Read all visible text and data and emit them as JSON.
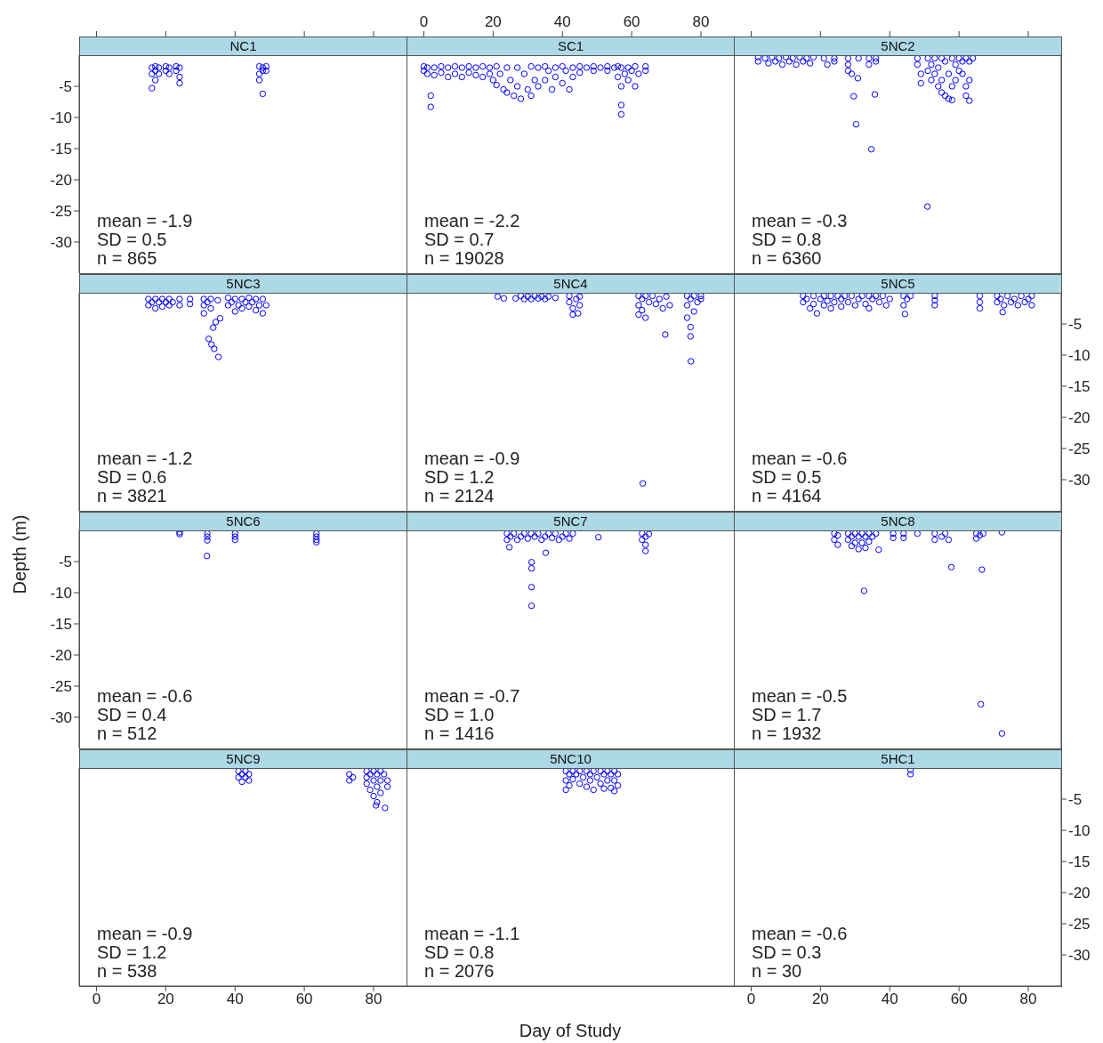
{
  "chart_data": [
    {
      "type": "scatter",
      "title": "NC1",
      "marker": "circle",
      "color": "#0000ff",
      "tick_labels": "y",
      "xlim": [
        -5,
        89.5
      ],
      "xticks": [
        0,
        20,
        40,
        60,
        80
      ],
      "ylim": [
        -35,
        0
      ],
      "yticks": [
        -5,
        -10,
        -15,
        -20,
        -25,
        -30
      ],
      "annotations": [
        "mean = -1.9",
        "SD = 0.5",
        "n = 865"
      ],
      "x": [
        16,
        16,
        16,
        17,
        17,
        17,
        18,
        18,
        20,
        20,
        21,
        21,
        23,
        23,
        24,
        24,
        24,
        47,
        47,
        47,
        48,
        48,
        48,
        49,
        49
      ],
      "values": [
        -2,
        -3,
        -5.3,
        -1.8,
        -2.5,
        -4,
        -2,
        -3,
        -1.8,
        -2.5,
        -2,
        -3,
        -1.8,
        -2.5,
        -2,
        -3.5,
        -4.5,
        -1.8,
        -3,
        -4,
        -2,
        -2.5,
        -6.2,
        -1.8,
        -2.5
      ]
    },
    {
      "type": "scatter",
      "title": "SC1",
      "marker": "circle",
      "color": "#0000ff",
      "tick_labels": "x",
      "xlim": [
        -5,
        89.5
      ],
      "xticks": [
        0,
        20,
        40,
        60,
        80
      ],
      "ylim": [
        -35,
        0
      ],
      "yticks": [
        -5,
        -10,
        -15,
        -20,
        -25,
        -30
      ],
      "annotations": [
        "mean = -2.2",
        "SD = 0.7",
        "n = 19028"
      ],
      "x": [
        0,
        0,
        1,
        1,
        2,
        2,
        3,
        3,
        5,
        5,
        7,
        7,
        9,
        9,
        11,
        11,
        13,
        13,
        15,
        15,
        17,
        17,
        19,
        19,
        20,
        21,
        21,
        22,
        23,
        24,
        24,
        25,
        26,
        27,
        27,
        28,
        29,
        30,
        31,
        31,
        32,
        33,
        33,
        35,
        35,
        36,
        37,
        38,
        38,
        40,
        40,
        41,
        42,
        43,
        43,
        45,
        45,
        47,
        49,
        49,
        51,
        53,
        53,
        55,
        56,
        56,
        57,
        57,
        57,
        57,
        58,
        59,
        59,
        60,
        61,
        61,
        62,
        64,
        64
      ],
      "values": [
        -1.8,
        -2.5,
        -2,
        -3,
        -6.5,
        -8.3,
        -2,
        -3.2,
        -1.8,
        -2.8,
        -2,
        -3.5,
        -1.8,
        -3,
        -2,
        -3.5,
        -1.8,
        -2.8,
        -2,
        -3.2,
        -1.8,
        -3.5,
        -2,
        -3,
        -4,
        -1.8,
        -4.8,
        -3,
        -5.5,
        -2,
        -6,
        -4,
        -6.5,
        -2,
        -5,
        -7,
        -3,
        -5.5,
        -1.8,
        -6.5,
        -4,
        -2,
        -5,
        -1.8,
        -4,
        -2.5,
        -5.5,
        -2,
        -3.5,
        -1.8,
        -4.5,
        -2.5,
        -5.5,
        -2,
        -3.5,
        -1.8,
        -2.8,
        -2,
        -1.8,
        -2.5,
        -2,
        -1.8,
        -2.5,
        -2,
        -1.8,
        -3.5,
        -2,
        -5,
        -8,
        -9.5,
        -3,
        -2,
        -4,
        -2.5,
        -1.8,
        -5,
        -3,
        -1.8,
        -2.5
      ]
    },
    {
      "type": "scatter",
      "title": "5NC2",
      "marker": "circle",
      "color": "#0000ff",
      "tick_labels": false,
      "xlim": [
        -5,
        89.5
      ],
      "xticks": [
        0,
        20,
        40,
        60,
        80
      ],
      "ylim": [
        -35,
        0
      ],
      "yticks": [
        -5,
        -10,
        -15,
        -20,
        -25,
        -30
      ],
      "annotations": [
        "mean = -0.3",
        "SD = 0.8",
        "n = 6360"
      ],
      "x": [
        2,
        2,
        4,
        5,
        6,
        7,
        8,
        9,
        10,
        11,
        12,
        13,
        14,
        15,
        16,
        17,
        18,
        21,
        22,
        24,
        24,
        28,
        28,
        28,
        29,
        29.6,
        30.3,
        30.8,
        31,
        34,
        34,
        34.7,
        35.7,
        36,
        36,
        48,
        48,
        49,
        49,
        50.9,
        51,
        51,
        52,
        52,
        53,
        53,
        54,
        54,
        55,
        55,
        55,
        56,
        56,
        57,
        57,
        58,
        58,
        58,
        59,
        59,
        60,
        60,
        61,
        61,
        62,
        62,
        62,
        63,
        63,
        63,
        64
      ],
      "values": [
        -0.3,
        -1,
        -0.5,
        -1.3,
        -0.3,
        -1,
        -0.5,
        -1.5,
        -0.3,
        -1,
        -0.5,
        -1.5,
        -0.3,
        -1,
        -0.5,
        -1.3,
        -0.3,
        -0.5,
        -1.5,
        -0.5,
        -1,
        -0.5,
        -1.5,
        -2.5,
        -3,
        -6.6,
        -11.1,
        -3.7,
        -0.5,
        -0.5,
        -1.5,
        -15.1,
        -6.3,
        -0.5,
        -1,
        -0.5,
        -1.5,
        -3,
        -4.5,
        -24.3,
        -0.5,
        -2.5,
        -1.5,
        -4,
        -0.5,
        -3,
        -5,
        -2,
        -0.5,
        -4,
        -6,
        -1,
        -6.5,
        -3,
        -7,
        -0.5,
        -5,
        -7.2,
        -1.5,
        -4,
        -0.5,
        -2.5,
        -1,
        -3,
        -0.5,
        -5,
        -6.5,
        -1,
        -4,
        -7.3,
        -0.5
      ]
    },
    {
      "type": "scatter",
      "title": "5NC3",
      "marker": "circle",
      "color": "#0000ff",
      "tick_labels": false,
      "xlim": [
        -5,
        89.5
      ],
      "xticks": [
        0,
        20,
        40,
        60,
        80
      ],
      "ylim": [
        -35,
        0
      ],
      "yticks": [
        -5,
        -10,
        -15,
        -20,
        -25,
        -30
      ],
      "annotations": [
        "mean = -1.2",
        "SD = 0.6",
        "n = 3821"
      ],
      "x": [
        15,
        15,
        16,
        17,
        17,
        18,
        19,
        19,
        20,
        21,
        21,
        22,
        24,
        24,
        27,
        27,
        31,
        31,
        31,
        32,
        32.4,
        33,
        33,
        33.2,
        33.7,
        34,
        34.4,
        35,
        35.2,
        35.7,
        38,
        38,
        39,
        40,
        40,
        41,
        42,
        42,
        43,
        44,
        44,
        45,
        46,
        46,
        47,
        48,
        48,
        49
      ],
      "values": [
        -1,
        -2,
        -1.5,
        -1,
        -2.5,
        -1.5,
        -1,
        -2.2,
        -1.5,
        -1,
        -2,
        -1.5,
        -1,
        -2,
        -1,
        -1.8,
        -1,
        -2,
        -3.3,
        -1.5,
        -7.4,
        -1,
        -2.5,
        -8.3,
        -5.6,
        -9,
        -4.7,
        -1.2,
        -10.3,
        -4.1,
        -0.8,
        -2,
        -1.5,
        -1,
        -3,
        -2,
        -1,
        -2.5,
        -1.5,
        -0.8,
        -2.2,
        -1.5,
        -1,
        -2.8,
        -2,
        -1,
        -3.3,
        -2
      ]
    },
    {
      "type": "scatter",
      "title": "5NC4",
      "marker": "circle",
      "color": "#0000ff",
      "tick_labels": false,
      "xlim": [
        -5,
        89.5
      ],
      "xticks": [
        0,
        20,
        40,
        60,
        80
      ],
      "ylim": [
        -35,
        0
      ],
      "yticks": [
        -5,
        -10,
        -15,
        -20,
        -25,
        -30
      ],
      "annotations": [
        "mean = -0.9",
        "SD = 1.2",
        "n = 2124"
      ],
      "x": [
        21.3,
        23.1,
        26.5,
        28,
        29,
        30,
        31,
        32,
        33,
        34,
        35,
        36,
        38,
        42,
        42,
        43,
        43,
        44,
        44.5,
        45,
        45,
        62,
        62,
        62,
        63,
        63,
        64,
        64,
        63.2,
        65,
        66,
        67,
        68,
        69,
        69.7,
        70,
        71,
        76,
        76,
        76,
        77,
        77,
        77,
        77.1,
        78,
        78,
        79,
        80,
        80
      ],
      "values": [
        -0.6,
        -0.9,
        -0.9,
        -0.5,
        -1,
        -0.6,
        -1,
        -0.5,
        -0.9,
        -0.6,
        -1,
        -0.6,
        -0.8,
        -0.5,
        -1.5,
        -2.5,
        -3.5,
        -1,
        -3.3,
        -0.6,
        -2,
        -0.5,
        -2,
        -3.5,
        -1,
        -2.8,
        -0.5,
        -4,
        -30.6,
        -1.5,
        -0.5,
        -1.8,
        -1,
        -2.5,
        -6.7,
        -0.6,
        -2,
        -0.5,
        -2,
        -4,
        -1,
        -5.5,
        -7,
        -11,
        -0.5,
        -3,
        -1.5,
        -0.5,
        -1
      ]
    },
    {
      "type": "scatter",
      "title": "5NC5",
      "marker": "circle",
      "color": "#0000ff",
      "tick_labels": "y",
      "xlim": [
        -5,
        89.5
      ],
      "xticks": [
        0,
        20,
        40,
        60,
        80
      ],
      "ylim": [
        -35,
        0
      ],
      "yticks": [
        -5,
        -10,
        -15,
        -20,
        -25,
        -30
      ],
      "annotations": [
        "mean = -0.6",
        "SD = 0.5",
        "n = 4164"
      ],
      "x": [
        15,
        15,
        16,
        17,
        18,
        18,
        19,
        20,
        21,
        21,
        22,
        23,
        23,
        24,
        25,
        26,
        26,
        27,
        28,
        29,
        30,
        31,
        32,
        33,
        34,
        34,
        35,
        36,
        37,
        38,
        39,
        40,
        44,
        44,
        44.4,
        45,
        46,
        53,
        53,
        53,
        66,
        66,
        66,
        71,
        71,
        72,
        72.6,
        73,
        74,
        75,
        76,
        77,
        78,
        79,
        80,
        81,
        81
      ],
      "values": [
        -0.5,
        -1.5,
        -1,
        -2.5,
        -0.5,
        -1.8,
        -3.3,
        -1,
        -0.5,
        -2,
        -1.3,
        -0.5,
        -2.5,
        -1.5,
        -0.5,
        -1,
        -2.2,
        -0.5,
        -1.5,
        -0.5,
        -2,
        -1,
        -0.5,
        -1.8,
        -0.5,
        -2.5,
        -1,
        -0.5,
        -1.5,
        -0.5,
        -2,
        -1,
        -0.5,
        -2,
        -3.4,
        -1,
        -0.5,
        -0.5,
        -1.2,
        -2,
        -0.5,
        -1.5,
        -2.5,
        -0.5,
        -1.5,
        -1,
        -3.1,
        -2,
        -0.5,
        -1.5,
        -1,
        -2,
        -0.5,
        -1.5,
        -1,
        -0.5,
        -2
      ]
    },
    {
      "type": "scatter",
      "title": "5NC6",
      "ylabel": "Depth (m)",
      "marker": "circle",
      "color": "#0000ff",
      "tick_labels": "y",
      "xlim": [
        -5,
        89.5
      ],
      "xticks": [
        0,
        20,
        40,
        60,
        80
      ],
      "ylim": [
        -35,
        0
      ],
      "yticks": [
        -5,
        -10,
        -15,
        -20,
        -25,
        -30
      ],
      "annotations": [
        "mean = -0.6",
        "SD = 0.4",
        "n = 512"
      ],
      "x": [
        24,
        24,
        32,
        32,
        32,
        31.9,
        40,
        40,
        40,
        63.5,
        63.5,
        63.5,
        63.5
      ],
      "values": [
        -0.3,
        -0.6,
        -0.5,
        -1,
        -1.6,
        -4.1,
        -0.5,
        -1,
        -1.5,
        -0.5,
        -1,
        -1.5,
        -1.9
      ]
    },
    {
      "type": "scatter",
      "title": "5NC7",
      "marker": "circle",
      "color": "#0000ff",
      "tick_labels": false,
      "xlim": [
        -5,
        89.5
      ],
      "xticks": [
        0,
        20,
        40,
        60,
        80
      ],
      "ylim": [
        -35,
        0
      ],
      "yticks": [
        -5,
        -10,
        -15,
        -20,
        -25,
        -30
      ],
      "annotations": [
        "mean = -0.7",
        "SD = 1.0",
        "n = 1416"
      ],
      "x": [
        24,
        24,
        24.7,
        25,
        26,
        27,
        28,
        29,
        30,
        31,
        31.1,
        31.1,
        31.1,
        31.1,
        32,
        33,
        34,
        35,
        35.2,
        36,
        37,
        38,
        39,
        40,
        41,
        42,
        43,
        50.4,
        63,
        63,
        64,
        64,
        64,
        65
      ],
      "values": [
        -0.5,
        -1.5,
        -2.7,
        -1,
        -0.5,
        -1.5,
        -1,
        -0.5,
        -1.3,
        -0.5,
        -5.1,
        -6.1,
        -9.1,
        -12.1,
        -1,
        -0.5,
        -1.5,
        -1,
        -3.6,
        -0.5,
        -1.2,
        -0.5,
        -1.5,
        -1,
        -0.5,
        -1.3,
        -0.5,
        -1.1,
        -0.5,
        -1.5,
        -1,
        -2.3,
        -3.3,
        -0.6
      ]
    },
    {
      "type": "scatter",
      "title": "5NC8",
      "marker": "circle",
      "color": "#0000ff",
      "tick_labels": false,
      "xlim": [
        -5,
        89.5
      ],
      "xticks": [
        0,
        20,
        40,
        60,
        80
      ],
      "ylim": [
        -35,
        0
      ],
      "yticks": [
        -5,
        -10,
        -15,
        -20,
        -25,
        -30
      ],
      "annotations": [
        "mean = -0.5",
        "SD = 1.7",
        "n = 1932"
      ],
      "x": [
        24,
        24,
        25,
        25,
        28,
        28,
        29,
        29,
        30,
        30,
        31,
        31,
        32,
        32,
        32.6,
        33,
        33,
        34,
        34,
        35,
        36,
        36.8,
        41,
        41,
        44,
        44,
        48,
        53,
        53,
        55,
        56,
        57,
        57.8,
        65,
        65,
        66,
        66.6,
        66.3,
        67,
        72.4,
        72.4
      ],
      "values": [
        -0.5,
        -1.5,
        -0.8,
        -2.3,
        -0.5,
        -1.5,
        -1,
        -2.5,
        -0.5,
        -2,
        -1,
        -3,
        -0.5,
        -2,
        -9.7,
        -1,
        -2.8,
        -0.5,
        -1.8,
        -1,
        -0.5,
        -3.1,
        -0.5,
        -1.2,
        -0.5,
        -1.2,
        -0.5,
        -0.5,
        -1.5,
        -1,
        -0.5,
        -1.5,
        -5.9,
        -0.5,
        -1.3,
        -0.8,
        -6.3,
        -27.9,
        -0.5,
        -0.3,
        -32.6
      ]
    },
    {
      "type": "scatter",
      "title": "5NC9",
      "marker": "circle",
      "color": "#0000ff",
      "tick_labels": "x",
      "xlim": [
        -5,
        89.5
      ],
      "xticks": [
        0,
        20,
        40,
        60,
        80
      ],
      "ylim": [
        -35,
        0
      ],
      "yticks": [
        -5,
        -10,
        -15,
        -20,
        -25,
        -30
      ],
      "annotations": [
        "mean = -0.9",
        "SD = 1.2",
        "n = 538"
      ],
      "x": [
        41,
        41,
        42,
        42,
        43,
        43,
        44,
        44,
        73,
        73,
        74,
        78,
        78,
        78,
        79,
        79,
        80,
        80,
        80,
        80.7,
        81,
        81,
        81,
        82,
        82,
        82,
        83,
        83.3,
        84,
        84
      ],
      "values": [
        -0.5,
        -1.5,
        -1,
        -2.2,
        -0.5,
        -1.5,
        -1,
        -2,
        -1,
        -2,
        -1.5,
        -0.5,
        -1.5,
        -2.5,
        -1,
        -3.5,
        -0.5,
        -2,
        -4.5,
        -6,
        -1,
        -3,
        -5.5,
        -0.5,
        -2,
        -4,
        -1,
        -6.4,
        -2,
        -3
      ]
    },
    {
      "type": "scatter",
      "title": "5NC10",
      "xlabel": "Day of Study",
      "marker": "circle",
      "color": "#0000ff",
      "tick_labels": false,
      "xlim": [
        -5,
        89.5
      ],
      "xticks": [
        0,
        20,
        40,
        60,
        80
      ],
      "ylim": [
        -35,
        0
      ],
      "yticks": [
        -5,
        -10,
        -15,
        -20,
        -25,
        -30
      ],
      "annotations": [
        "mean = -1.1",
        "SD = 0.8",
        "n = 2076"
      ],
      "x": [
        41,
        41,
        41,
        42,
        42,
        43,
        43,
        44,
        45,
        45,
        46,
        47,
        47,
        48,
        48,
        49,
        49,
        50,
        51,
        51,
        52,
        52,
        53,
        53,
        54,
        54,
        55,
        55,
        55,
        56,
        56
      ],
      "values": [
        -0.5,
        -2,
        -3.5,
        -1,
        -2.8,
        -0.5,
        -1.8,
        -1,
        -0.5,
        -2.5,
        -1.5,
        -0.5,
        -3,
        -1,
        -2,
        -0.5,
        -3.5,
        -1.5,
        -0.5,
        -2.5,
        -1,
        -3.3,
        -0.5,
        -2,
        -1,
        -3.2,
        -0.5,
        -2,
        -3.7,
        -1,
        -2.8
      ]
    },
    {
      "type": "scatter",
      "title": "5HC1",
      "marker": "circle",
      "color": "#0000ff",
      "xlim": [
        -5,
        89.5
      ],
      "xticks": [
        0,
        20,
        40,
        60,
        80
      ],
      "ylim": [
        -35,
        0
      ],
      "yticks": [
        -5,
        -10,
        -15,
        -20,
        -25,
        -30
      ],
      "annotations": [
        "mean = -0.6",
        "SD = 0.3",
        "n = 30"
      ],
      "x": [
        46,
        46
      ],
      "values": [
        -0.3,
        -1
      ]
    }
  ]
}
